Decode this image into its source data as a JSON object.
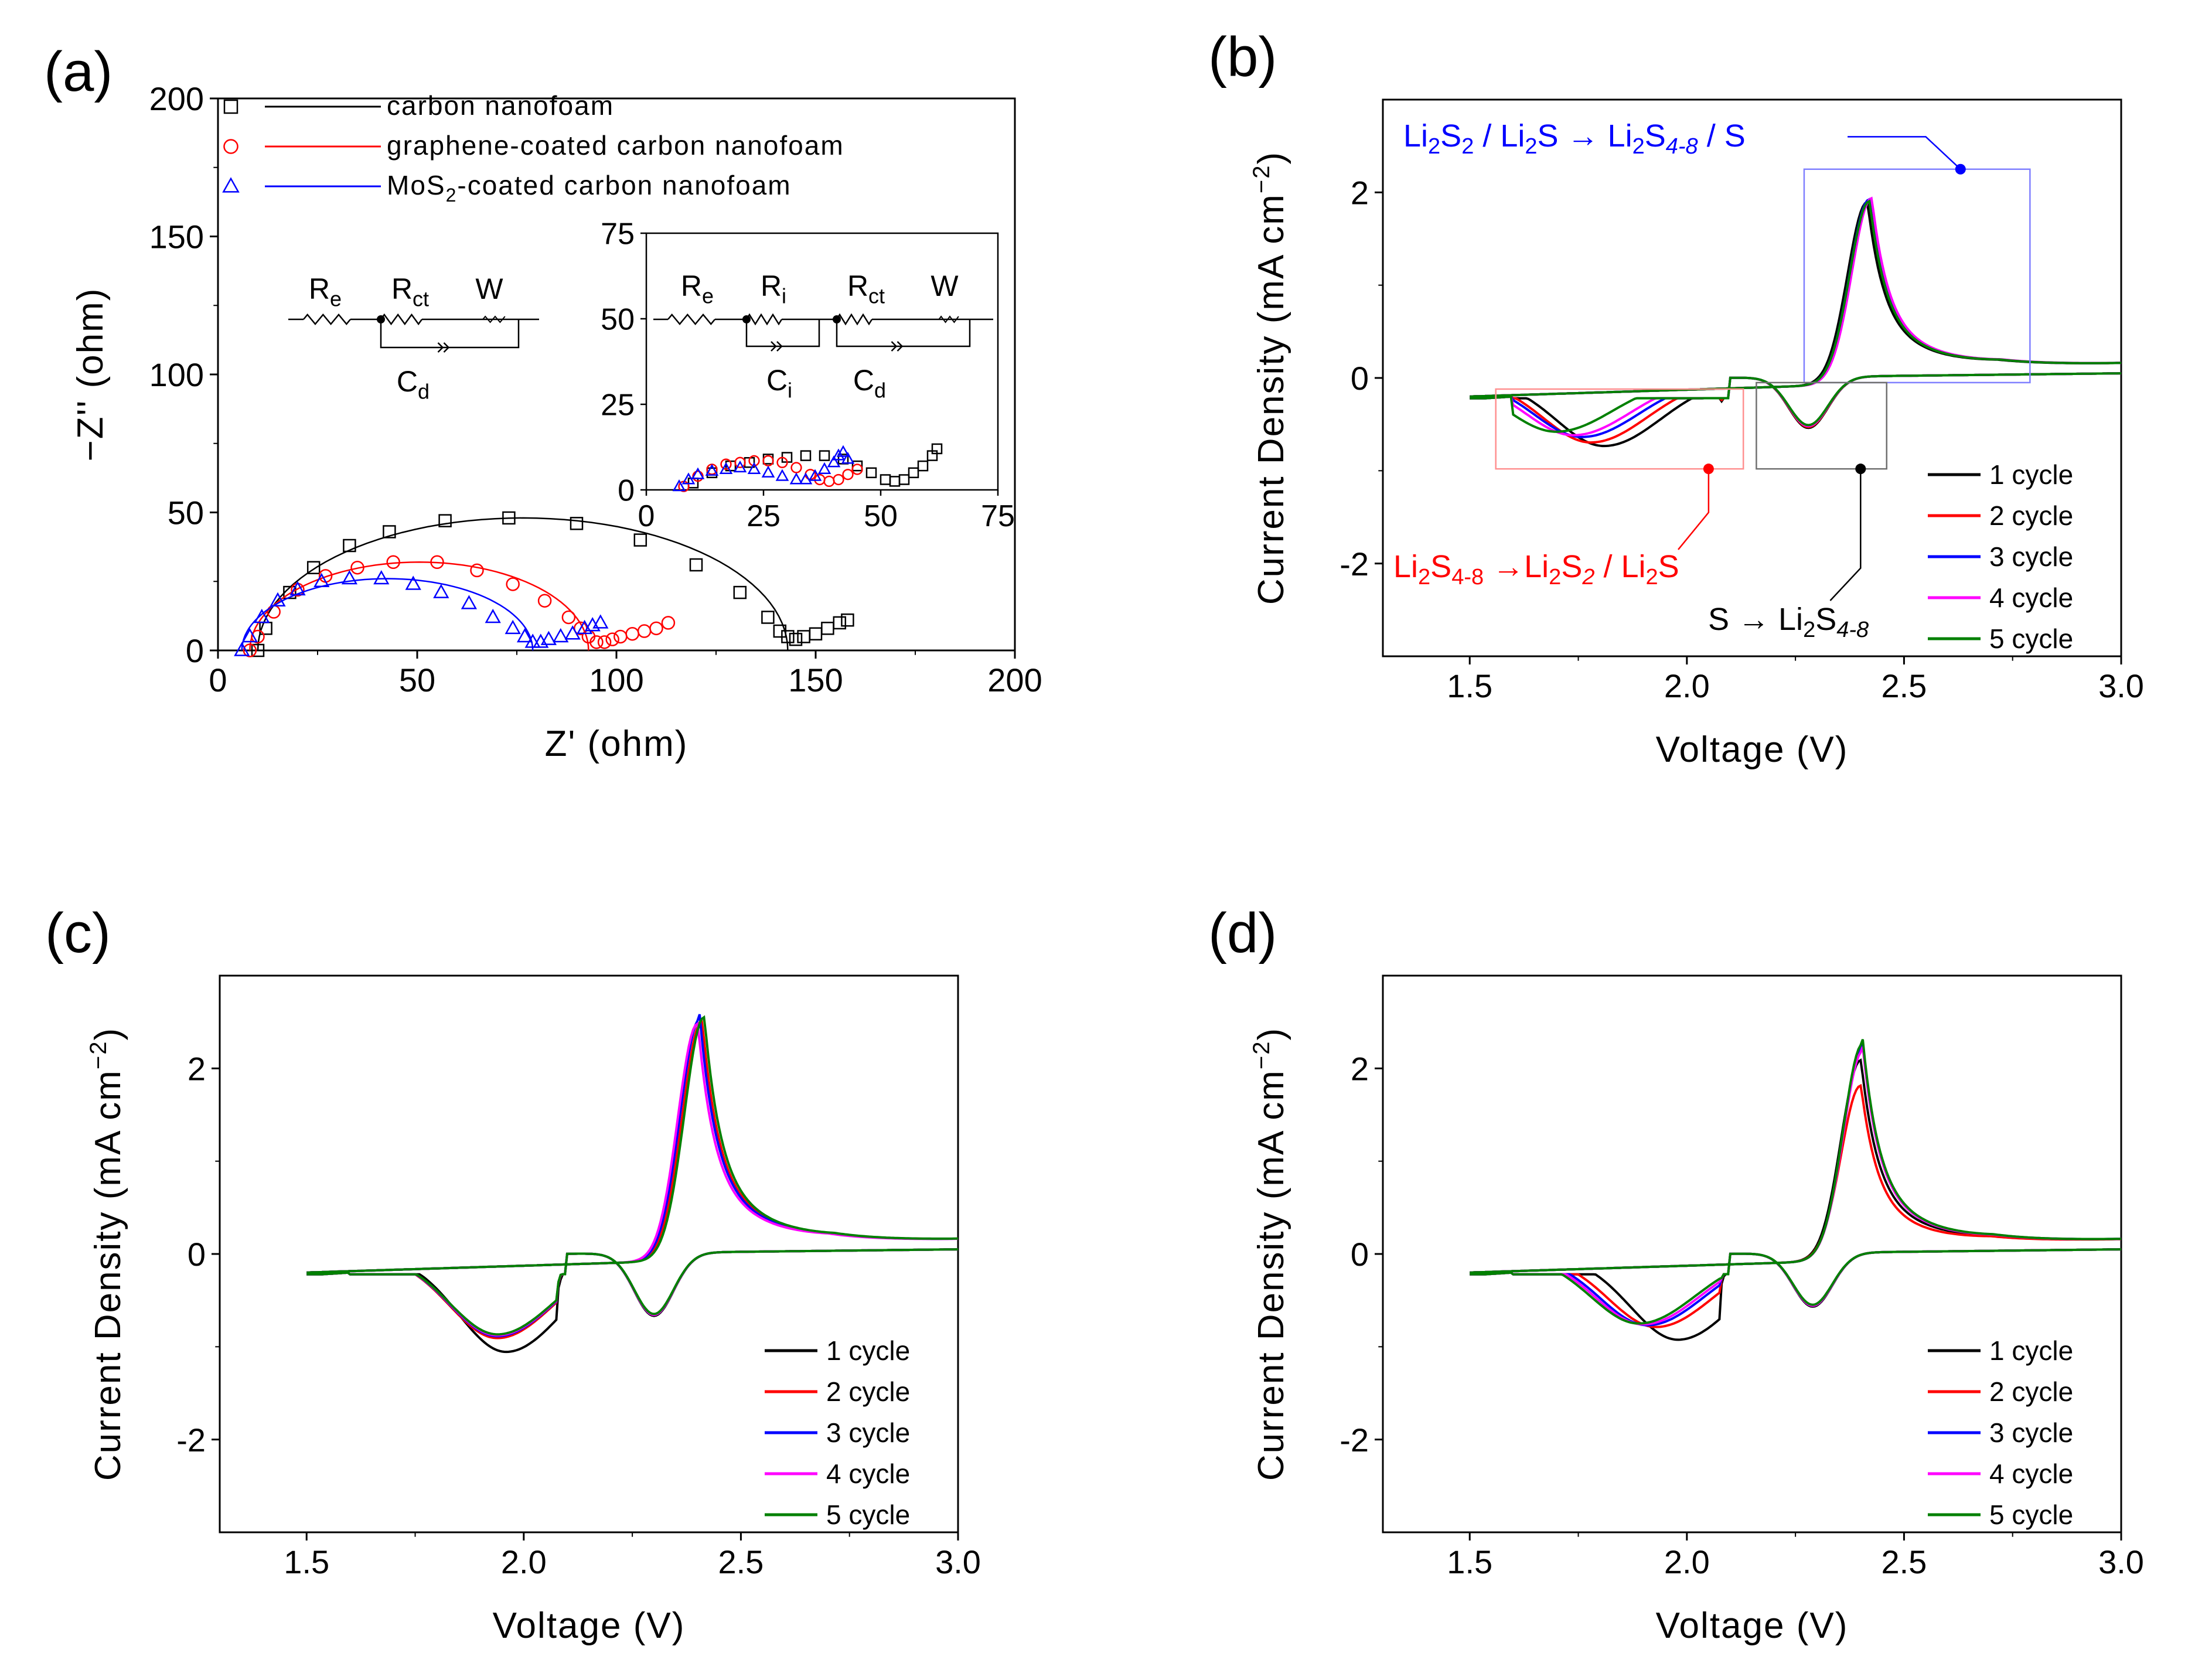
{
  "colors": {
    "black": "#000000",
    "red": "#ff0000",
    "blue": "#0000ff",
    "magenta": "#ff00ff",
    "green": "#008000",
    "box_blue": "#8080ff",
    "box_red": "#ff9090",
    "box_gray": "#707070"
  },
  "chart_data": [
    {
      "id": "a",
      "panel_label": "(a)",
      "type": "scatter",
      "xlabel": "Z' (ohm)",
      "ylabel": "−Z'' (ohm)",
      "xlim": [
        0,
        200
      ],
      "ylim": [
        0,
        200
      ],
      "xticks": [
        "0",
        "50",
        "100",
        "150",
        "200"
      ],
      "yticks": [
        "0",
        "50",
        "100",
        "150",
        "200"
      ],
      "legend": [
        {
          "label": "carbon nanofoam",
          "marker": "square",
          "color": "#000000"
        },
        {
          "label": "graphene-coated carbon nanofoam",
          "marker": "circle",
          "color": "#ff0000"
        },
        {
          "label": "MoS2-coated carbon nanofoam",
          "marker": "triangle",
          "color": "#0000ff"
        }
      ],
      "series": [
        {
          "name": "carbon nanofoam",
          "color": "#000000",
          "marker": "square",
          "fit_arc": [
            10,
            143
          ],
          "x": [
            10,
            12,
            18,
            24,
            33,
            43,
            57,
            73,
            90,
            106,
            120,
            131,
            138,
            141,
            143,
            145,
            147,
            150,
            153,
            156,
            158
          ],
          "y": [
            0,
            8,
            21,
            30,
            38,
            43,
            47,
            48,
            46,
            40,
            31,
            21,
            12,
            7,
            5,
            4,
            5,
            6,
            8,
            10,
            11
          ]
        },
        {
          "name": "graphene-coated carbon nanofoam",
          "color": "#ff0000",
          "marker": "circle",
          "fit_arc": [
            8,
            93
          ],
          "x": [
            8,
            10,
            14,
            20,
            27,
            35,
            44,
            55,
            65,
            74,
            82,
            88,
            91,
            93,
            95,
            97,
            99,
            101,
            104,
            107,
            110,
            113
          ],
          "y": [
            0,
            5,
            14,
            22,
            27,
            30,
            32,
            32,
            29,
            24,
            18,
            12,
            8,
            5,
            3,
            3,
            4,
            5,
            6,
            7,
            8,
            10
          ]
        },
        {
          "name": "MoS2-coated carbon nanofoam",
          "color": "#0000ff",
          "marker": "triangle",
          "fit_arc": [
            6,
            79
          ],
          "x": [
            6,
            8,
            11,
            15,
            20,
            26,
            33,
            41,
            49,
            56,
            63,
            69,
            74,
            77,
            79,
            81,
            83,
            86,
            89,
            92,
            94,
            96
          ],
          "y": [
            0,
            5,
            12,
            18,
            22,
            25,
            26,
            26,
            24,
            21,
            17,
            12,
            8,
            5,
            3,
            3,
            4,
            5,
            6,
            8,
            9,
            10
          ]
        }
      ],
      "inset": {
        "xlim": [
          0,
          75
        ],
        "ylim": [
          0,
          75
        ],
        "xticks": [
          "0",
          "25",
          "50",
          "75"
        ],
        "yticks": [
          "0",
          "25",
          "50",
          "75"
        ],
        "series": [
          {
            "color": "#000000",
            "marker": "square",
            "x": [
              10,
              14,
              18,
              22,
              26,
              30,
              34,
              38,
              42,
              45,
              48,
              51,
              53,
              55,
              57,
              59,
              61,
              62
            ],
            "y": [
              2,
              5,
              7,
              8,
              9,
              9.5,
              10,
              10,
              9,
              7,
              5,
              3,
              2.5,
              3,
              5,
              7,
              10,
              12
            ]
          },
          {
            "color": "#ff0000",
            "marker": "circle",
            "x": [
              8,
              11,
              14,
              17,
              20,
              23,
              26,
              29,
              32,
              35,
              37,
              39,
              41,
              43,
              45
            ],
            "y": [
              1,
              4,
              6,
              7.5,
              8,
              8.5,
              8.5,
              8,
              6.5,
              4.5,
              3,
              2.5,
              3,
              4.5,
              6
            ]
          },
          {
            "color": "#0000ff",
            "marker": "triangle",
            "x": [
              7,
              9,
              11,
              14,
              17,
              20,
              23,
              26,
              29,
              32,
              34,
              36,
              38,
              40,
              41,
              42,
              43
            ],
            "y": [
              1,
              3,
              4.5,
              5.5,
              6,
              6.5,
              6,
              5,
              4,
              3,
              3,
              4,
              6,
              8,
              10,
              11,
              9
            ]
          }
        ]
      },
      "circuits": [
        {
          "elements": [
            "R",
            "e",
            "R",
            "ct",
            "W",
            "C",
            "d"
          ]
        },
        {
          "elements": [
            "R",
            "e",
            "R",
            "i",
            "C",
            "i",
            "R",
            "ct",
            "W",
            "C",
            "d"
          ]
        }
      ]
    },
    {
      "id": "b",
      "panel_label": "(b)",
      "type": "line",
      "xlabel": "Voltage (V)",
      "ylabel": "Current Density (mA cm",
      "ylabel_sup": "−2",
      "ylabel_end": ")",
      "xlim": [
        1.3,
        3.0
      ],
      "ylim": [
        -3,
        3
      ],
      "xticks": [
        "1.5",
        "2.0",
        "2.5",
        "3.0"
      ],
      "yticks": [
        "-2",
        "0",
        "2"
      ],
      "legend": [
        "1 cycle",
        "2 cycle",
        "3 cycle",
        "4 cycle",
        "5 cycle"
      ],
      "series": [
        {
          "name": "1 cycle",
          "color": "#000000",
          "ox_peak": 2.0,
          "ox_x": 2.415,
          "red1": 0.72,
          "red1_x": 1.81,
          "red2": 0.55,
          "red2_x": 2.28
        },
        {
          "name": "2 cycle",
          "color": "#ff0000",
          "ox_peak": 2.02,
          "ox_x": 2.42,
          "red1": 0.68,
          "red1_x": 1.78,
          "red2": 0.54,
          "red2_x": 2.28
        },
        {
          "name": "3 cycle",
          "color": "#0000ff",
          "ox_peak": 2.03,
          "ox_x": 2.42,
          "red1": 0.62,
          "red1_x": 1.76,
          "red2": 0.53,
          "red2_x": 2.28
        },
        {
          "name": "4 cycle",
          "color": "#ff00ff",
          "ox_peak": 2.04,
          "ox_x": 2.425,
          "red1": 0.6,
          "red1_x": 1.74,
          "red2": 0.53,
          "red2_x": 2.28
        },
        {
          "name": "5 cycle",
          "color": "#008000",
          "ox_peak": 2.01,
          "ox_x": 2.42,
          "red1": 0.56,
          "red1_x": 1.7,
          "red2": 0.52,
          "red2_x": 2.28
        }
      ],
      "annotations": {
        "top": {
          "t1": "Li",
          "s1": "2",
          "t2": "S",
          "s2": "2",
          "t3": " / Li",
          "s3": "2",
          "t4": "S → Li",
          "s4": "2",
          "t5": "S",
          "s5": "4-8",
          "t6": " / S"
        },
        "left": {
          "t1": "Li",
          "s1": "2",
          "t2": "S",
          "s2": "4-8",
          "t3": " →Li",
          "s3": "2",
          "t4": "S",
          "s4": "2",
          "t5": " / Li",
          "s5": "2",
          "t6": "S"
        },
        "right": {
          "t1": "S → Li",
          "s1": "2",
          "t2": "S",
          "s2": "4-8"
        }
      }
    },
    {
      "id": "c",
      "panel_label": "(c)",
      "type": "line",
      "xlabel": "Voltage (V)",
      "ylabel": "Current Density (mA cm",
      "ylabel_sup": "−2",
      "ylabel_end": ")",
      "xlim": [
        1.3,
        3.0
      ],
      "ylim": [
        -3,
        3
      ],
      "xticks": [
        "1.5",
        "2.0",
        "2.5",
        "3.0"
      ],
      "yticks": [
        "-2",
        "0",
        "2"
      ],
      "legend": [
        "1 cycle",
        "2 cycle",
        "3 cycle",
        "4 cycle",
        "5 cycle"
      ],
      "series": [
        {
          "name": "1 cycle",
          "color": "#000000",
          "ox_peak": 2.6,
          "ox_x": 2.41,
          "red1": 1.05,
          "red1_x": 1.96,
          "red2": 0.68,
          "red2_x": 2.3
        },
        {
          "name": "2 cycle",
          "color": "#ff0000",
          "ox_peak": 2.63,
          "ox_x": 2.41,
          "red1": 0.9,
          "red1_x": 1.94,
          "red2": 0.67,
          "red2_x": 2.3
        },
        {
          "name": "3 cycle",
          "color": "#0000ff",
          "ox_peak": 2.65,
          "ox_x": 2.405,
          "red1": 0.88,
          "red1_x": 1.94,
          "red2": 0.67,
          "red2_x": 2.3
        },
        {
          "name": "4 cycle",
          "color": "#ff00ff",
          "ox_peak": 2.6,
          "ox_x": 2.4,
          "red1": 0.87,
          "red1_x": 1.94,
          "red2": 0.67,
          "red2_x": 2.3
        },
        {
          "name": "5 cycle",
          "color": "#008000",
          "ox_peak": 2.67,
          "ox_x": 2.415,
          "red1": 0.86,
          "red1_x": 1.94,
          "red2": 0.66,
          "red2_x": 2.3
        }
      ]
    },
    {
      "id": "d",
      "panel_label": "(d)",
      "type": "line",
      "xlabel": "Voltage (V)",
      "ylabel": "Current Density (mA cm",
      "ylabel_sup": "−2",
      "ylabel_end": ")",
      "xlim": [
        1.3,
        3.0
      ],
      "ylim": [
        -3,
        3
      ],
      "xticks": [
        "1.5",
        "2.0",
        "2.5",
        "3.0"
      ],
      "yticks": [
        "-2",
        "0",
        "2"
      ],
      "legend": [
        "1 cycle",
        "2 cycle",
        "3 cycle",
        "4 cycle",
        "5 cycle"
      ],
      "series": [
        {
          "name": "1 cycle",
          "color": "#000000",
          "ox_peak": 2.2,
          "ox_x": 2.4,
          "red1": 0.92,
          "red1_x": 1.98,
          "red2": 0.58,
          "red2_x": 2.29
        },
        {
          "name": "2 cycle",
          "color": "#ff0000",
          "ox_peak": 1.92,
          "ox_x": 2.4,
          "red1": 0.78,
          "red1_x": 1.93,
          "red2": 0.57,
          "red2_x": 2.29
        },
        {
          "name": "3 cycle",
          "color": "#0000ff",
          "ox_peak": 2.35,
          "ox_x": 2.405,
          "red1": 0.76,
          "red1_x": 1.91,
          "red2": 0.57,
          "red2_x": 2.29
        },
        {
          "name": "4 cycle",
          "color": "#ff00ff",
          "ox_peak": 2.3,
          "ox_x": 2.405,
          "red1": 0.75,
          "red1_x": 1.9,
          "red2": 0.57,
          "red2_x": 2.29
        },
        {
          "name": "5 cycle",
          "color": "#008000",
          "ox_peak": 2.38,
          "ox_x": 2.405,
          "red1": 0.74,
          "red1_x": 1.89,
          "red2": 0.56,
          "red2_x": 2.29
        }
      ]
    }
  ]
}
